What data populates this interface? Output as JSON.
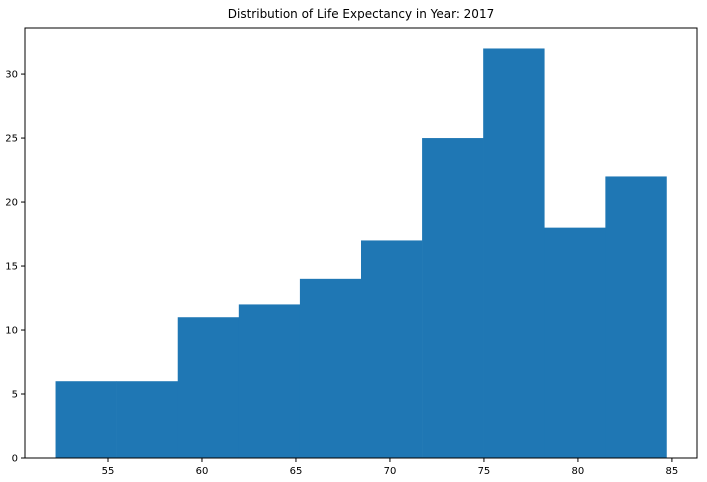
{
  "chart_data": {
    "type": "bar",
    "title": "Distribution of Life Expectancy in Year: 2017",
    "xlabel": "",
    "ylabel": "",
    "bin_edges": [
      52.21,
      55.46,
      58.71,
      61.96,
      65.21,
      68.46,
      71.71,
      74.96,
      78.21,
      81.46,
      84.71
    ],
    "values": [
      6,
      6,
      11,
      12,
      14,
      17,
      25,
      32,
      18,
      22
    ],
    "xlim": [
      50.585,
      86.335
    ],
    "ylim": [
      0,
      33.6
    ],
    "x_ticks": [
      55,
      60,
      65,
      70,
      75,
      80,
      85
    ],
    "y_ticks": [
      0,
      5,
      10,
      15,
      20,
      25,
      30
    ],
    "bar_color": "#1f77b4",
    "grid": false
  }
}
